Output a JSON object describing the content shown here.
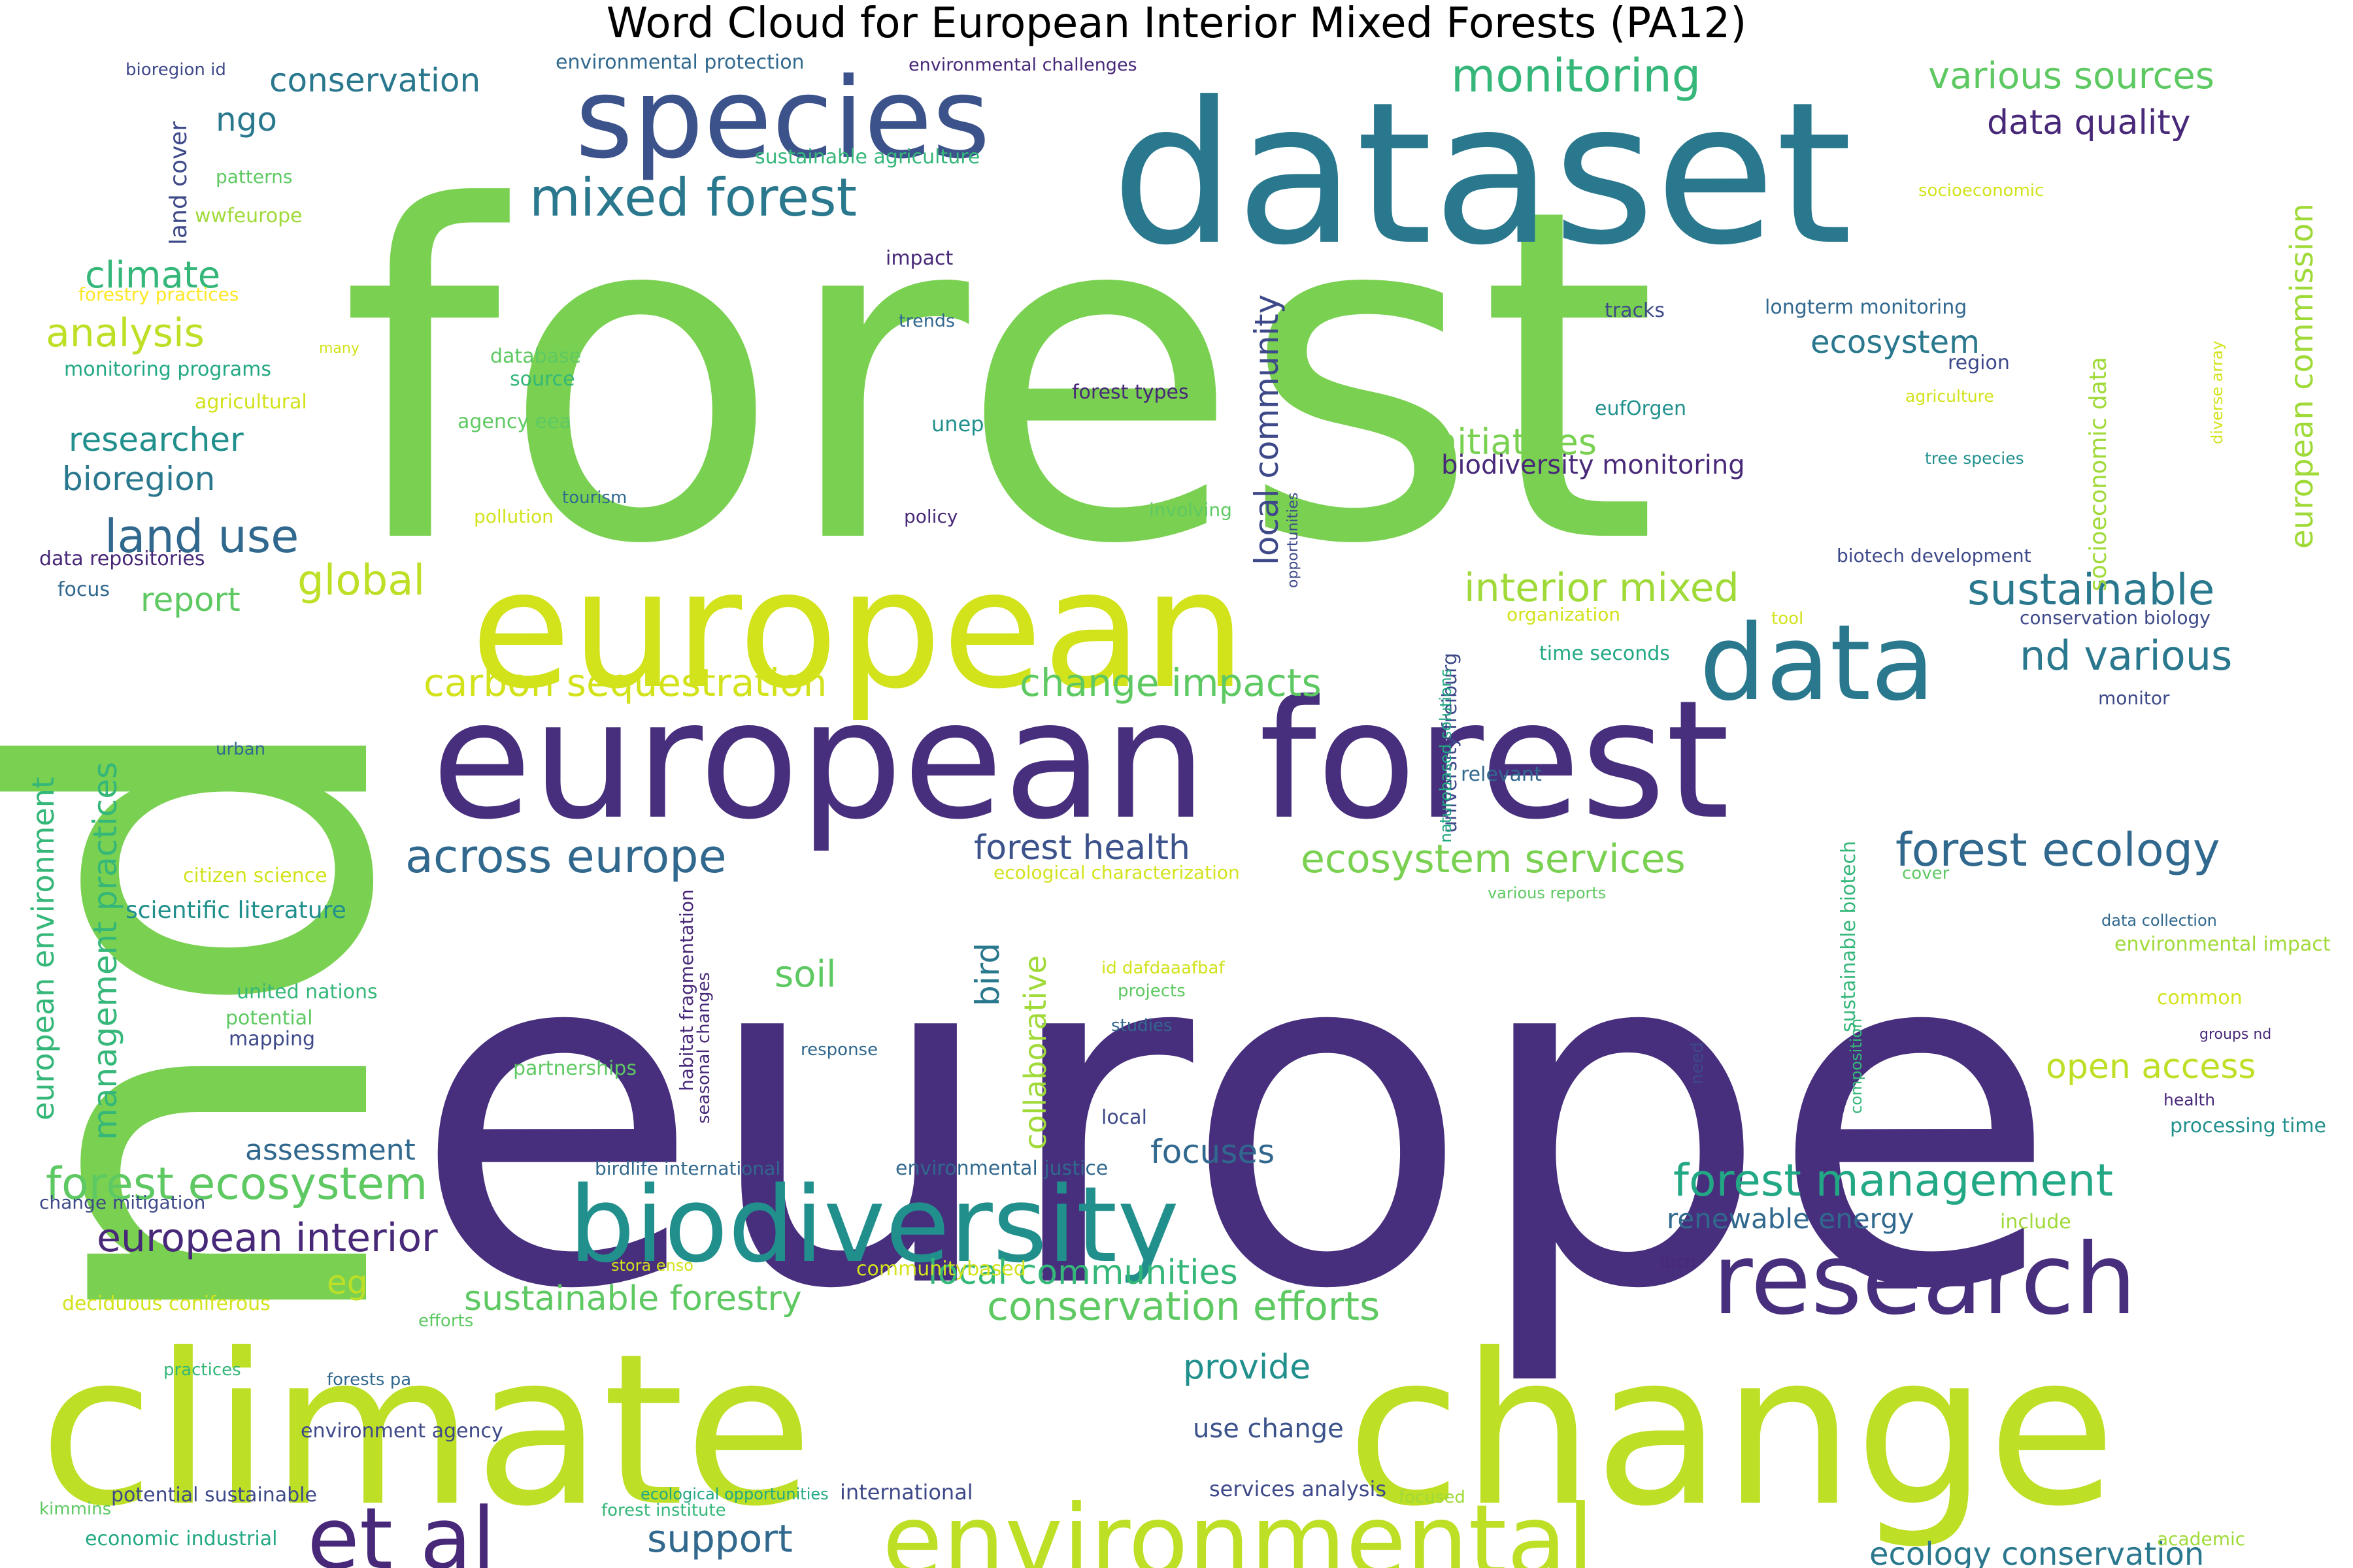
{
  "title": "Word Cloud for European Interior Mixed Forests (PA12)",
  "palette": "viridis",
  "words": [
    {
      "text": "forest",
      "color": "#7ad151",
      "weight": 100
    },
    {
      "text": "europe",
      "color": "#472f7d",
      "weight": 98
    },
    {
      "text": "nd",
      "color": "#7ad151",
      "weight": 90
    },
    {
      "text": "dataset",
      "color": "#2a788e",
      "weight": 62
    },
    {
      "text": "climate",
      "color": "#bddf26",
      "weight": 60
    },
    {
      "text": "change",
      "color": "#bddf26",
      "weight": 60
    },
    {
      "text": "european",
      "color": "#d2e21b",
      "weight": 52
    },
    {
      "text": "european forest",
      "color": "#472f7d",
      "weight": 50
    },
    {
      "text": "species",
      "color": "#3b528b",
      "weight": 38
    },
    {
      "text": "biodiversity",
      "color": "#21908d",
      "weight": 36
    },
    {
      "text": "data",
      "color": "#2a788e",
      "weight": 34
    },
    {
      "text": "research",
      "color": "#472f7d",
      "weight": 34
    },
    {
      "text": "environmental",
      "color": "#bddf26",
      "weight": 32
    },
    {
      "text": "et al",
      "color": "#482878",
      "weight": 28
    },
    {
      "text": "mixed forest",
      "color": "#2a788e",
      "weight": 16
    },
    {
      "text": "monitoring",
      "color": "#35b779",
      "weight": 16
    },
    {
      "text": "land use",
      "color": "#31688e",
      "weight": 15
    },
    {
      "text": "across europe",
      "color": "#31688e",
      "weight": 15
    },
    {
      "text": "forest ecology",
      "color": "#31688e",
      "weight": 15
    },
    {
      "text": "forest ecosystem",
      "color": "#5ec962",
      "weight": 15
    },
    {
      "text": "forest management",
      "color": "#22a884",
      "weight": 15
    },
    {
      "text": "local community",
      "color": "#3e4989",
      "weight": 12
    },
    {
      "text": "european environment",
      "color": "#35b779",
      "weight": 10
    },
    {
      "text": "management practices",
      "color": "#35b779",
      "weight": 11
    },
    {
      "text": "ecosystem services",
      "color": "#7ad151",
      "weight": 13
    },
    {
      "text": "european interior",
      "color": "#482878",
      "weight": 13
    },
    {
      "text": "sustainable",
      "color": "#2a788e",
      "weight": 14
    },
    {
      "text": "interior mixed",
      "color": "#a0da39",
      "weight": 13
    },
    {
      "text": "nd various",
      "color": "#2a788e",
      "weight": 13
    },
    {
      "text": "conservation efforts",
      "color": "#5ec962",
      "weight": 13
    },
    {
      "text": "european commission",
      "color": "#a0da39",
      "weight": 10
    },
    {
      "text": "various sources",
      "color": "#5ec962",
      "weight": 12
    },
    {
      "text": "conservation",
      "color": "#2a788e",
      "weight": 11
    },
    {
      "text": "data quality",
      "color": "#482878",
      "weight": 11
    },
    {
      "text": "analysis",
      "color": "#bddf26",
      "weight": 12
    },
    {
      "text": "climate",
      "color": "#35b779",
      "weight": 12
    },
    {
      "text": "global",
      "color": "#bddf26",
      "weight": 13
    },
    {
      "text": "carbon sequestration",
      "color": "#d2e21b",
      "weight": 12
    },
    {
      "text": "change impacts",
      "color": "#5ec962",
      "weight": 12
    },
    {
      "text": "forest health",
      "color": "#3b528b",
      "weight": 11
    },
    {
      "text": "sustainable forestry",
      "color": "#5ec962",
      "weight": 11
    },
    {
      "text": "local communities",
      "color": "#35b779",
      "weight": 11
    },
    {
      "text": "open access",
      "color": "#bddf26",
      "weight": 11
    },
    {
      "text": "support",
      "color": "#31688e",
      "weight": 12
    },
    {
      "text": "ecology conservation",
      "color": "#2a788e",
      "weight": 10
    },
    {
      "text": "initiatives",
      "color": "#7ad151",
      "weight": 11
    },
    {
      "text": "ecosystem",
      "color": "#2a788e",
      "weight": 10
    },
    {
      "text": "researcher",
      "color": "#21908d",
      "weight": 10
    },
    {
      "text": "bioregion",
      "color": "#2a788e",
      "weight": 10
    },
    {
      "text": "ngo",
      "color": "#2a788e",
      "weight": 11
    },
    {
      "text": "report",
      "color": "#5ec962",
      "weight": 10
    },
    {
      "text": "soil",
      "color": "#5ec962",
      "weight": 11
    },
    {
      "text": "bird",
      "color": "#2a788e",
      "weight": 10
    },
    {
      "text": "eg",
      "color": "#bddf26",
      "weight": 10
    },
    {
      "text": "focuses",
      "color": "#31688e",
      "weight": 10
    },
    {
      "text": "provide",
      "color": "#21908d",
      "weight": 10
    },
    {
      "text": "assessment",
      "color": "#31688e",
      "weight": 9
    },
    {
      "text": "renewable energy",
      "color": "#31688e",
      "weight": 9
    },
    {
      "text": "collaborative",
      "color": "#a0da39",
      "weight": 9
    },
    {
      "text": "use change",
      "color": "#3b528b",
      "weight": 8
    },
    {
      "text": "biodiversity monitoring",
      "color": "#482878",
      "weight": 8
    },
    {
      "text": "socioeconomic data",
      "color": "#a0da39",
      "weight": 7
    },
    {
      "text": "university freiburg",
      "color": "#3e4989",
      "weight": 6
    },
    {
      "text": "land cover",
      "color": "#3e4989",
      "weight": 7
    },
    {
      "text": "environmental protection",
      "color": "#31688e",
      "weight": 6
    },
    {
      "text": "environmental challenges",
      "color": "#482878",
      "weight": 5
    },
    {
      "text": "bioregion id",
      "color": "#3e4989",
      "weight": 5
    },
    {
      "text": "sustainable agriculture",
      "color": "#35b779",
      "weight": 6
    },
    {
      "text": "patterns",
      "color": "#5ec962",
      "weight": 5
    },
    {
      "text": "wwfeurope",
      "color": "#a0da39",
      "weight": 6
    },
    {
      "text": "forestry practices",
      "color": "#fde725",
      "weight": 6
    },
    {
      "text": "many",
      "color": "#d2e21b",
      "weight": 5
    },
    {
      "text": "monitoring programs",
      "color": "#22a884",
      "weight": 6
    },
    {
      "text": "agricultural",
      "color": "#d2e21b",
      "weight": 6
    },
    {
      "text": "impact",
      "color": "#482878",
      "weight": 6
    },
    {
      "text": "trends",
      "color": "#31688e",
      "weight": 5
    },
    {
      "text": "database",
      "color": "#5ec962",
      "weight": 6
    },
    {
      "text": "source",
      "color": "#35b779",
      "weight": 6
    },
    {
      "text": "agency eea",
      "color": "#5ec962",
      "weight": 6
    },
    {
      "text": "unep",
      "color": "#21908d",
      "weight": 7
    },
    {
      "text": "forest types",
      "color": "#482878",
      "weight": 6
    },
    {
      "text": "tracks",
      "color": "#3e4989",
      "weight": 6
    },
    {
      "text": "longterm monitoring",
      "color": "#31688e",
      "weight": 6
    },
    {
      "text": "region",
      "color": "#3e4989",
      "weight": 6
    },
    {
      "text": "agriculture",
      "color": "#d2e21b",
      "weight": 5
    },
    {
      "text": "eufOrgen",
      "color": "#21908d",
      "weight": 6
    },
    {
      "text": "tree species",
      "color": "#21908d",
      "weight": 5
    },
    {
      "text": "diverse array",
      "color": "#d2e21b",
      "weight": 5
    },
    {
      "text": "socioeconomic",
      "color": "#d2e21b",
      "weight": 5
    },
    {
      "text": "tourism",
      "color": "#31688e",
      "weight": 5
    },
    {
      "text": "pollution",
      "color": "#d2e21b",
      "weight": 5
    },
    {
      "text": "policy",
      "color": "#482878",
      "weight": 5
    },
    {
      "text": "involving",
      "color": "#5ec962",
      "weight": 5
    },
    {
      "text": "opportunities",
      "color": "#3e4989",
      "weight": 4
    },
    {
      "text": "data repositories",
      "color": "#482878",
      "weight": 6
    },
    {
      "text": "focus",
      "color": "#31688e",
      "weight": 6
    },
    {
      "text": "biotech development",
      "color": "#3e4989",
      "weight": 5
    },
    {
      "text": "organization",
      "color": "#d2e21b",
      "weight": 5
    },
    {
      "text": "tool",
      "color": "#d2e21b",
      "weight": 5
    },
    {
      "text": "conservation biology",
      "color": "#3e4989",
      "weight": 5
    },
    {
      "text": "time seconds",
      "color": "#22a884",
      "weight": 6
    },
    {
      "text": "monitor",
      "color": "#3e4989",
      "weight": 5
    },
    {
      "text": "urban",
      "color": "#31688e",
      "weight": 5
    },
    {
      "text": "relevant",
      "color": "#31688e",
      "weight": 6
    },
    {
      "text": "naturebased solutions",
      "color": "#22a884",
      "weight": 6
    },
    {
      "text": "citizen science",
      "color": "#d2e21b",
      "weight": 7
    },
    {
      "text": "scientific literature",
      "color": "#21908d",
      "weight": 6
    },
    {
      "text": "ecological characterization",
      "color": "#d2e21b",
      "weight": 5
    },
    {
      "text": "cover",
      "color": "#5ec962",
      "weight": 5
    },
    {
      "text": "various reports",
      "color": "#5ec962",
      "weight": 6
    },
    {
      "text": "sustainable biotech",
      "color": "#35b779",
      "weight": 5
    },
    {
      "text": "data collection",
      "color": "#31688e",
      "weight": 6
    },
    {
      "text": "environmental impact",
      "color": "#a0da39",
      "weight": 5
    },
    {
      "text": "habitat fragmentation",
      "color": "#482878",
      "weight": 4
    },
    {
      "text": "seasonal changes",
      "color": "#482878",
      "weight": 5
    },
    {
      "text": "id dafdaaafbaf",
      "color": "#d2e21b",
      "weight": 5
    },
    {
      "text": "projects",
      "color": "#5ec962",
      "weight": 5
    },
    {
      "text": "need",
      "color": "#3e4989",
      "weight": 4
    },
    {
      "text": "composition",
      "color": "#35b779",
      "weight": 6
    },
    {
      "text": "common",
      "color": "#d2e21b",
      "weight": 4
    },
    {
      "text": "groups nd",
      "color": "#482878",
      "weight": 6
    },
    {
      "text": "united nations",
      "color": "#35b779",
      "weight": 6
    },
    {
      "text": "potential",
      "color": "#5ec962",
      "weight": 6
    },
    {
      "text": "mapping",
      "color": "#3e4989",
      "weight": 5
    },
    {
      "text": "response",
      "color": "#31688e",
      "weight": 5
    },
    {
      "text": "studies",
      "color": "#31688e",
      "weight": 6
    },
    {
      "text": "partnerships",
      "color": "#5ec962",
      "weight": 5
    },
    {
      "text": "health",
      "color": "#482878",
      "weight": 6
    },
    {
      "text": "processing time",
      "color": "#21908d",
      "weight": 6
    },
    {
      "text": "local",
      "color": "#3e4989",
      "weight": 6
    },
    {
      "text": "birdlife international",
      "color": "#31688e",
      "weight": 6
    },
    {
      "text": "environmental justice",
      "color": "#31688e",
      "weight": 6
    },
    {
      "text": "change mitigation",
      "color": "#3e4989",
      "weight": 6
    },
    {
      "text": "include",
      "color": "#a0da39",
      "weight": 5
    },
    {
      "text": "iucn",
      "color": "#482878",
      "weight": 6
    },
    {
      "text": "communitybased",
      "color": "#d2e21b",
      "weight": 5
    },
    {
      "text": "stora enso",
      "color": "#d2e21b",
      "weight": 6
    },
    {
      "text": "deciduous coniferous",
      "color": "#d2e21b",
      "weight": 5
    },
    {
      "text": "efforts",
      "color": "#5ec962",
      "weight": 5
    },
    {
      "text": "practices",
      "color": "#35b779",
      "weight": 5
    },
    {
      "text": "forests pa",
      "color": "#31688e",
      "weight": 6
    },
    {
      "text": "environment agency",
      "color": "#3e4989",
      "weight": 6
    },
    {
      "text": "potential sustainable",
      "color": "#3e4989",
      "weight": 5
    },
    {
      "text": "kimmins",
      "color": "#5ec962",
      "weight": 5
    },
    {
      "text": "ecological opportunities",
      "color": "#22a884",
      "weight": 5
    },
    {
      "text": "forest institute",
      "color": "#35b779",
      "weight": 6
    },
    {
      "text": "international",
      "color": "#3e4989",
      "weight": 6
    },
    {
      "text": "services analysis",
      "color": "#3e4989",
      "weight": 5
    },
    {
      "text": "focused",
      "color": "#a0da39",
      "weight": 5
    },
    {
      "text": "academic",
      "color": "#a0da39",
      "weight": 6
    },
    {
      "text": "economic industrial",
      "color": "#22a884",
      "weight": 5
    }
  ]
}
